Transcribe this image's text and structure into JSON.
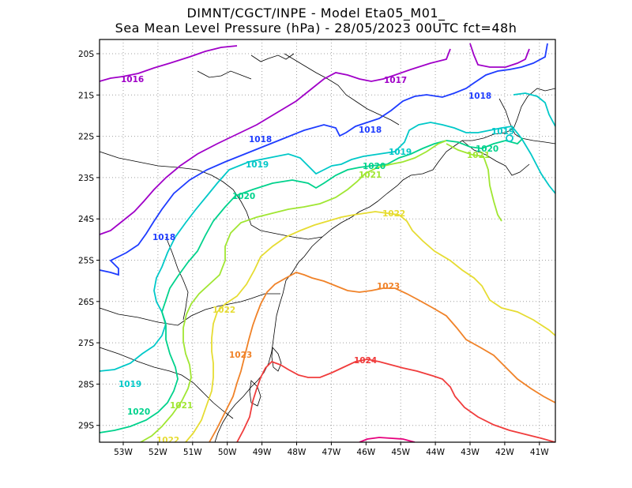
{
  "title_line1": "DIMNT/CGCT/INPE -  Model Eta05_M01_",
  "title_line2": "Sea Mean Level Pressure (hPa) - 28/05/2023 00UTC fct=48h",
  "lon_labels": [
    "53W",
    "52W",
    "51W",
    "50W",
    "49W",
    "48W",
    "47W",
    "46W",
    "45W",
    "44W",
    "43W",
    "42W",
    "41W"
  ],
  "lat_labels": [
    "20S",
    "21S",
    "22S",
    "23S",
    "24S",
    "25S",
    "26S",
    "27S",
    "28S",
    "29S"
  ],
  "contour_labels": [
    "1016",
    "1017",
    "1018",
    "1019",
    "1020",
    "1021",
    "1022",
    "1023",
    "1024"
  ],
  "colors": {
    "1016": "#a000c8",
    "1017": "#a000c8",
    "1018": "#1e3cff",
    "1019": "#00c8c8",
    "1020": "#00d28c",
    "1021": "#a0e632",
    "1022": "#e6dc32",
    "1023": "#f08228",
    "1024": "#f03c3c",
    "1025": "#e6007c",
    "borders": "#000000",
    "grid": "#a0a0a0"
  }
}
